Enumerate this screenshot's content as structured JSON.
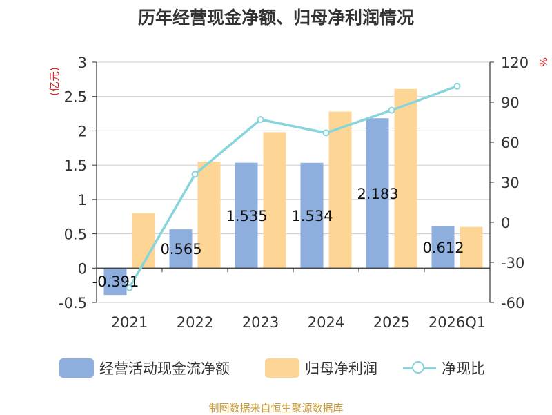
{
  "title": "历年经营现金净额、归母净利润情况",
  "source": "制图数据来自恒生聚源数据库",
  "colors": {
    "cash_flow": "#8eaedd",
    "net_profit": "#fdd594",
    "ratio": "#88d4dc",
    "unit": "#e02020",
    "axis": "#333333",
    "grid": "#cccccc"
  },
  "legend": {
    "cash_flow": "经营活动现金流净额",
    "net_profit": "归母净利润",
    "ratio": "净现比"
  },
  "chart_data": {
    "type": "bar",
    "categories": [
      "2021",
      "2022",
      "2023",
      "2024",
      "2025",
      "2026Q1"
    ],
    "series": [
      {
        "name": "经营活动现金流净额",
        "kind": "bar",
        "axis": "left",
        "values": [
          -0.391,
          0.565,
          1.535,
          1.534,
          2.183,
          0.612
        ],
        "labels": [
          "-0.391",
          "0.565",
          "1.535",
          "1.534",
          "2.183",
          "0.612"
        ]
      },
      {
        "name": "归母净利润",
        "kind": "bar",
        "axis": "left",
        "values": [
          0.8,
          1.55,
          1.98,
          2.28,
          2.61,
          0.6
        ]
      },
      {
        "name": "净现比",
        "kind": "line",
        "axis": "right",
        "values": [
          -49,
          36,
          77,
          67,
          84,
          102
        ]
      }
    ],
    "left_axis": {
      "unit": "(亿元)",
      "ylim": [
        -0.5,
        3
      ],
      "ticks": [
        "-0.5",
        "0",
        "0.5",
        "1",
        "1.5",
        "2",
        "2.5",
        "3"
      ]
    },
    "right_axis": {
      "unit": "%",
      "ylim": [
        -60,
        120
      ],
      "ticks": [
        "-60",
        "-30",
        "0",
        "30",
        "60",
        "90",
        "120"
      ]
    },
    "grid": true,
    "legend_position": "bottom"
  }
}
